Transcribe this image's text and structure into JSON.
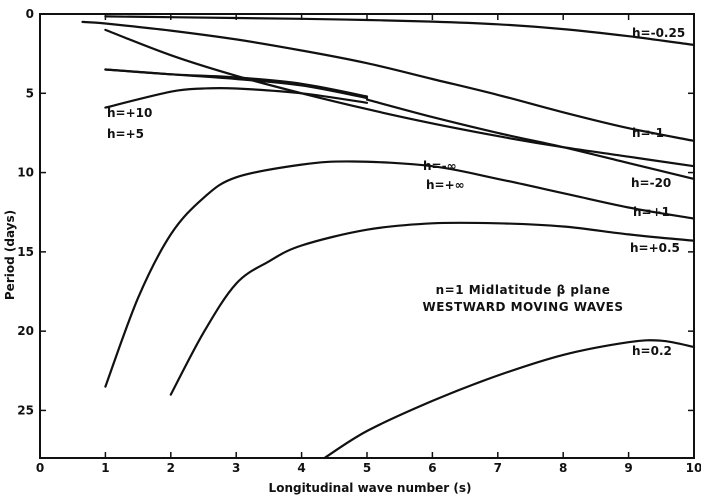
{
  "chart_data": {
    "type": "line",
    "xlabel": "Longitudinal wave number  (s)",
    "ylabel": "Period (days)",
    "xlim": [
      0,
      10
    ],
    "ylim": [
      0,
      28
    ],
    "y_inverted": true,
    "grid": false,
    "x_ticks": [
      "0",
      "1",
      "2",
      "3",
      "4",
      "5",
      "6",
      "7",
      "8",
      "9",
      "10"
    ],
    "y_ticks": [
      {
        "value": 0,
        "label": "0"
      },
      {
        "value": 5,
        "label": "5"
      },
      {
        "value": 10,
        "label": "10"
      },
      {
        "value": 15,
        "label": "15"
      },
      {
        "value": 20,
        "label": "20"
      },
      {
        "value": 25,
        "label": "25"
      }
    ],
    "annotation_lines": [
      "n=1  Midlatitude  β plane",
      "WESTWARD  MOVING  WAVES"
    ],
    "series": [
      {
        "name": "h=-0.25",
        "x": [
          1,
          2,
          3,
          4,
          5,
          6,
          7,
          8,
          9,
          10
        ],
        "y": [
          0.15,
          0.2,
          0.25,
          0.3,
          0.38,
          0.48,
          0.65,
          0.95,
          1.4,
          1.95
        ]
      },
      {
        "name": "h=-1",
        "x": [
          0.65,
          1,
          2,
          3,
          4,
          5,
          6,
          7,
          8,
          9,
          10
        ],
        "y": [
          0.5,
          0.6,
          1.05,
          1.6,
          2.3,
          3.1,
          4.1,
          5.1,
          6.2,
          7.2,
          8.0
        ]
      },
      {
        "name": "h=-20",
        "x": [
          1,
          2,
          3,
          4,
          5,
          6,
          7,
          8,
          9,
          10
        ],
        "y": [
          1.0,
          2.6,
          3.9,
          5.0,
          6.0,
          6.9,
          7.7,
          8.4,
          9.0,
          9.6
        ]
      },
      {
        "name": "h=-∞",
        "x": [
          1,
          2,
          3,
          4,
          5
        ],
        "y": [
          3.5,
          3.8,
          4.0,
          4.4,
          5.2
        ]
      },
      {
        "name": "h=+∞",
        "x": [
          5,
          6,
          7,
          8,
          9,
          10
        ],
        "y": [
          5.4,
          6.5,
          7.5,
          8.4,
          9.4,
          10.4
        ]
      },
      {
        "name": "h=+10",
        "x": [
          1,
          2,
          3,
          4,
          5
        ],
        "y": [
          3.5,
          3.8,
          4.1,
          4.5,
          5.3
        ]
      },
      {
        "name": "h=+5",
        "x": [
          1,
          2,
          2.5,
          3,
          4,
          5
        ],
        "y": [
          5.9,
          4.9,
          4.7,
          4.7,
          5.0,
          5.6
        ]
      },
      {
        "name": "h=+1",
        "x": [
          1,
          1.5,
          2,
          2.5,
          3,
          4,
          4.8,
          6,
          7,
          8,
          9,
          10
        ],
        "y": [
          23.5,
          17.9,
          13.9,
          11.6,
          10.3,
          9.5,
          9.3,
          9.6,
          10.4,
          11.3,
          12.2,
          12.9
        ]
      },
      {
        "name": "h=+0.5",
        "x": [
          2,
          2.5,
          3,
          3.5,
          4,
          5,
          6,
          7,
          8,
          9,
          10
        ],
        "y": [
          24.0,
          20.1,
          17.0,
          15.6,
          14.6,
          13.6,
          13.2,
          13.2,
          13.4,
          13.9,
          14.3
        ]
      },
      {
        "name": "h=0.2",
        "x": [
          4.35,
          5,
          6,
          7,
          8,
          9,
          9.5,
          10
        ],
        "y": [
          28.0,
          26.3,
          24.4,
          22.8,
          21.5,
          20.7,
          20.6,
          21.0
        ]
      }
    ]
  }
}
